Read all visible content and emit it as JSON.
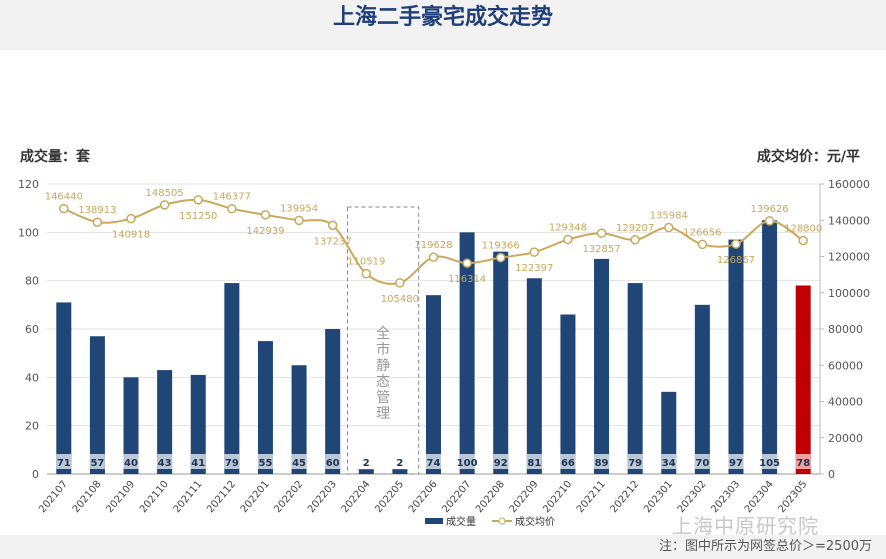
{
  "title": "上海二手豪宅成交走势",
  "watermark": "上海中原研究院",
  "note": "注：图中所示为网签总价＞=2500万",
  "chart_data": {
    "type": "bar+line",
    "title": "上海二手豪宅成交走势",
    "ylabel_left": "成交量：套",
    "ylabel_right": "成交均价：元/平",
    "ylim_left": [
      0,
      120
    ],
    "ylim_right": [
      0,
      160000
    ],
    "yticks_left": [
      "0",
      "20",
      "40",
      "60",
      "80",
      "100",
      "120"
    ],
    "yticks_right": [
      "0",
      "20000",
      "40000",
      "60000",
      "80000",
      "100000",
      "120000",
      "140000",
      "160000"
    ],
    "categories": [
      "202107",
      "202108",
      "202109",
      "202110",
      "202111",
      "202112",
      "202201",
      "202202",
      "202203",
      "202204",
      "202205",
      "202206",
      "202207",
      "202208",
      "202209",
      "202210",
      "202211",
      "202212",
      "202301",
      "202302",
      "202303",
      "202304",
      "202305"
    ],
    "series": [
      {
        "name": "成交量",
        "type": "bar",
        "color": "#1f4676",
        "highlight_color": "#c00000",
        "values": [
          71,
          57,
          40,
          43,
          41,
          79,
          55,
          45,
          60,
          2,
          2,
          74,
          100,
          92,
          81,
          66,
          89,
          79,
          34,
          70,
          97,
          105,
          78
        ]
      },
      {
        "name": "成交均价",
        "type": "line",
        "color": "#c9a85a",
        "values": [
          146440,
          138913,
          140918,
          148505,
          151250,
          146377,
          142939,
          139954,
          137237,
          110519,
          105480,
          119628,
          116314,
          119366,
          122397,
          129348,
          132857,
          129207,
          135984,
          126656,
          126867,
          139626,
          128800
        ]
      }
    ],
    "annotation": {
      "text": "全市静态管理",
      "range": [
        "202204",
        "202205"
      ]
    },
    "legend": "bottom",
    "grid": true
  }
}
